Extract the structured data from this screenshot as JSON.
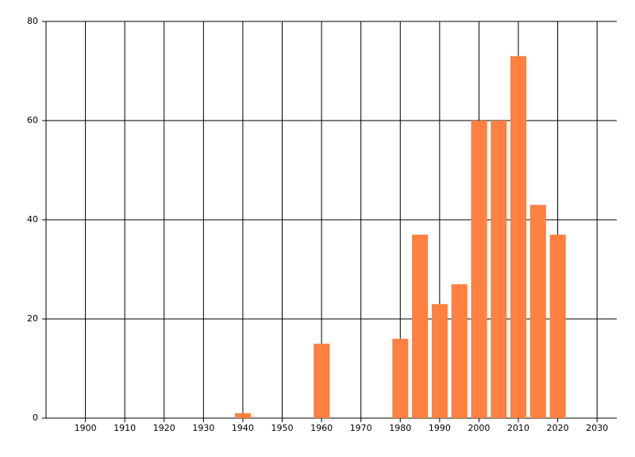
{
  "chart_data": {
    "type": "bar",
    "x": [
      1940,
      1960,
      1980,
      1985,
      1990,
      1995,
      2000,
      2005,
      2010,
      2015,
      2020
    ],
    "values": [
      1,
      15,
      16,
      37,
      23,
      27,
      60,
      60,
      73,
      43,
      37
    ],
    "color": "#ff8040",
    "xlim": [
      1890,
      2035
    ],
    "xticks": [
      1900,
      1910,
      1920,
      1930,
      1940,
      1950,
      1960,
      1970,
      1980,
      1990,
      2000,
      2010,
      2020,
      2030
    ],
    "ylim": [
      0,
      80
    ],
    "yticks": [
      0,
      20,
      40,
      60,
      80
    ],
    "grid": true
  }
}
